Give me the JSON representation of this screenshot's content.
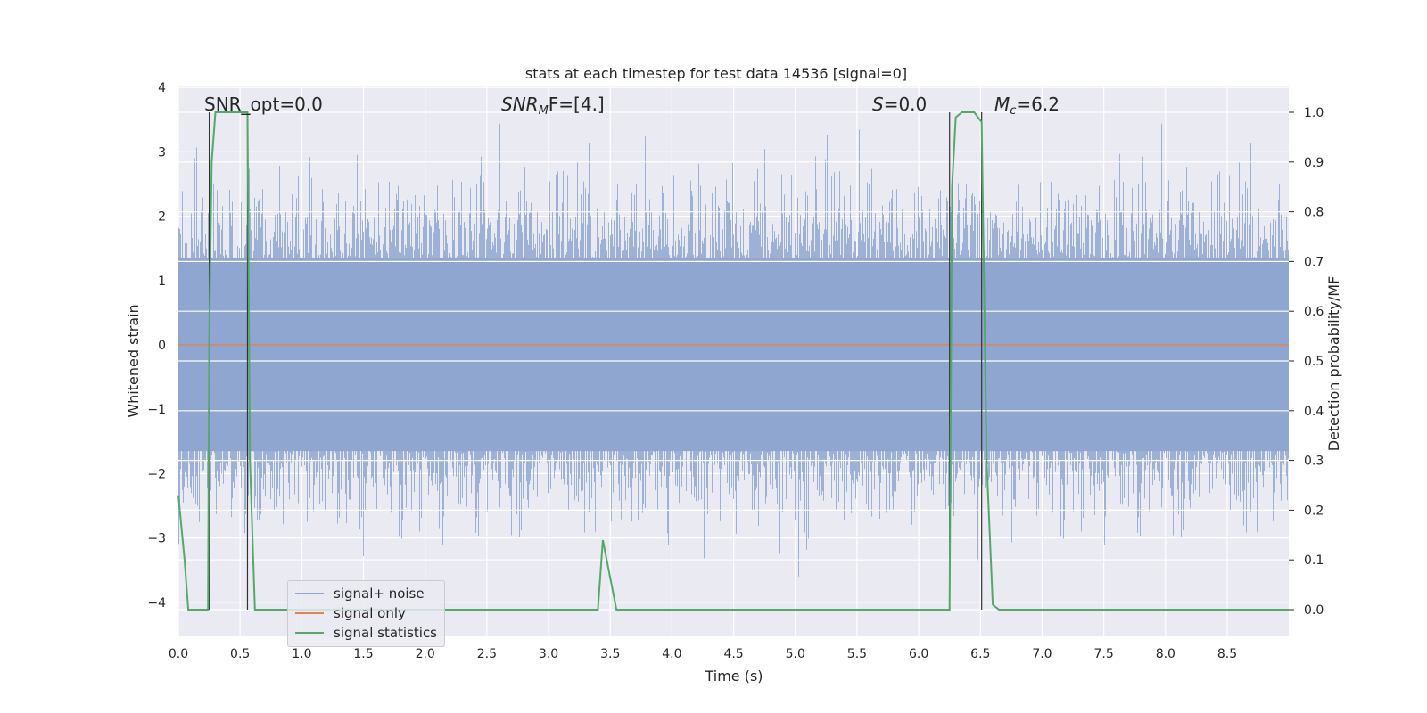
{
  "chart_data": {
    "type": "line",
    "title": "stats at each timestep for test data 14536 [signal=0]",
    "xlabel": "Time (s)",
    "ylabel_left": "Whitened strain",
    "ylabel_right": "Detection probability/MF",
    "xlim": [
      0.0,
      9.0
    ],
    "ylim_left": [
      -4.4,
      4.1
    ],
    "ylim_right": [
      -0.05,
      1.03
    ],
    "xticks": [
      "0.0",
      "0.5",
      "1.0",
      "1.5",
      "2.0",
      "2.5",
      "3.0",
      "3.5",
      "4.0",
      "4.5",
      "5.0",
      "5.5",
      "6.0",
      "6.5",
      "7.0",
      "7.5",
      "8.0",
      "8.5"
    ],
    "yticks_left": [
      "4",
      "3",
      "2",
      "1",
      "0",
      "−1",
      "−2",
      "−3",
      "−4"
    ],
    "yticks_right": [
      "1.0",
      "0.9",
      "0.8",
      "0.7",
      "0.6",
      "0.5",
      "0.4",
      "0.3",
      "0.2",
      "0.1",
      "0.0"
    ],
    "grid": true,
    "legend_position": "lower-left",
    "annotations": {
      "snr_opt": "SNR_opt=0.0",
      "snr_mf": "SNR",
      "snr_mf_sub": "M",
      "snr_mf_tail": "F=[4.]",
      "s_label": "S",
      "s_value": "=0.0",
      "mc_label": "M",
      "mc_sub": "c",
      "mc_value": "=6.2"
    },
    "vertical_markers_s": [
      0.25,
      0.56,
      6.25,
      6.51
    ],
    "series": [
      {
        "name": "signal+ noise",
        "color": "#8fa6d0",
        "axis": "left",
        "description_values": {
          "typical_envelope": [
            -1.7,
            1.4
          ],
          "max": 3.7,
          "min": -3.6
        }
      },
      {
        "name": "signal only",
        "color": "#dd8452",
        "axis": "left",
        "x": [
          0.0,
          9.0
        ],
        "y": [
          0.0,
          0.0
        ]
      },
      {
        "name": "signal statistics",
        "color": "#55a868",
        "axis": "right",
        "x": [
          0.0,
          0.05,
          0.08,
          0.12,
          0.2,
          0.24,
          0.25,
          0.27,
          0.3,
          0.35,
          0.56,
          0.58,
          0.62,
          0.7,
          3.35,
          3.4,
          3.44,
          3.55,
          3.6,
          6.2,
          6.25,
          6.27,
          6.3,
          6.35,
          6.45,
          6.51,
          6.55,
          6.6,
          6.65,
          9.0
        ],
        "y": [
          0.23,
          0.1,
          0.0,
          0.0,
          0.0,
          0.0,
          0.55,
          0.9,
          1.0,
          1.0,
          1.0,
          0.3,
          0.0,
          0.0,
          0.0,
          0.0,
          0.14,
          0.0,
          0.0,
          0.0,
          0.0,
          0.85,
          0.99,
          1.0,
          1.0,
          0.98,
          0.3,
          0.01,
          0.0,
          0.0
        ]
      }
    ]
  }
}
